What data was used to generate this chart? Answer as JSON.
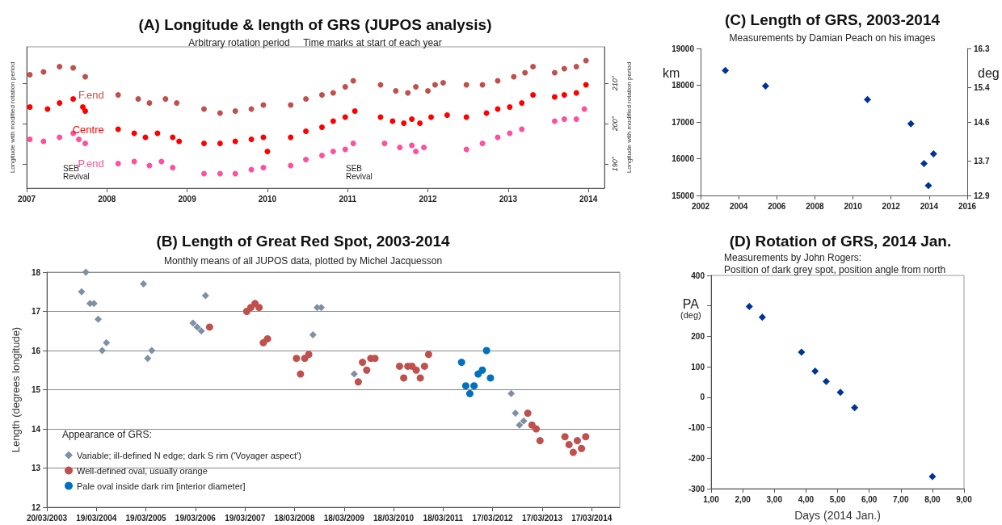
{
  "chart_data": [
    {
      "type": "scatter",
      "title": "(A) Longitude & length of GRS (JUPOS analysis)",
      "subtitle": "Arbitrary rotation period     Time marks at start of each year",
      "ylabel": "Longitude with modified rotation period",
      "y2label": "Longitude with modified rotation period",
      "marker": "circle",
      "xlim": [
        2007,
        2014.2
      ],
      "xticks": [
        2007,
        2008,
        2009,
        2010,
        2011,
        2012,
        2013,
        2014
      ],
      "ylim": [
        184,
        219
      ],
      "yticks": [
        {
          "value": 190,
          "label": "190°"
        },
        {
          "value": 200,
          "label": "200°"
        },
        {
          "value": 210,
          "label": "210°"
        }
      ],
      "annotations": [
        "SEB Revival",
        "SEB Revival"
      ],
      "series": [
        {
          "name": "F.end",
          "color": "#c0504d",
          "x": [
            2007.04,
            2007.21,
            2007.41,
            2007.58,
            2007.73,
            2008.14,
            2008.39,
            2008.53,
            2008.73,
            2008.87,
            2009.21,
            2009.41,
            2009.6,
            2009.8,
            2009.95,
            2010.29,
            2010.48,
            2010.68,
            2010.82,
            2010.97,
            2011.07,
            2011.41,
            2011.6,
            2011.75,
            2011.85,
            2012.0,
            2012.09,
            2012.19,
            2012.48,
            2012.68,
            2012.87,
            2013.07,
            2013.21,
            2013.31,
            2013.58,
            2013.7,
            2013.85,
            2013.97
          ],
          "values": [
            212.1,
            212.8,
            214.1,
            213.8,
            211.6,
            207.1,
            206.1,
            205.1,
            206.1,
            205.1,
            203.6,
            202.6,
            203.1,
            203.6,
            204.6,
            204.6,
            206.1,
            207.1,
            207.6,
            209.1,
            210.6,
            209.6,
            208.1,
            207.6,
            209.1,
            208.1,
            209.6,
            210.1,
            209.6,
            209.6,
            210.6,
            211.6,
            212.6,
            214.1,
            212.6,
            213.6,
            214.1,
            215.6
          ]
        },
        {
          "name": "Centre",
          "color": "#ff0000",
          "x": [
            2007.04,
            2007.26,
            2007.41,
            2007.58,
            2007.7,
            2007.73,
            2008.14,
            2008.34,
            2008.48,
            2008.63,
            2008.82,
            2008.9,
            2009.21,
            2009.41,
            2009.6,
            2009.8,
            2009.95,
            2010.0,
            2010.29,
            2010.48,
            2010.68,
            2010.82,
            2010.97,
            2011.09,
            2011.41,
            2011.56,
            2011.7,
            2011.8,
            2011.9,
            2012.04,
            2012.24,
            2012.48,
            2012.73,
            2012.87,
            2013.02,
            2013.17,
            2013.31,
            2013.58,
            2013.7,
            2013.85,
            2013.97
          ],
          "values": [
            204.1,
            203.6,
            205.1,
            206.1,
            204.1,
            203.1,
            198.6,
            197.6,
            196.6,
            197.6,
            196.6,
            195.6,
            195.1,
            195.1,
            195.6,
            196.1,
            196.6,
            193.1,
            196.6,
            198.1,
            199.1,
            200.6,
            201.6,
            203.1,
            201.6,
            200.6,
            200.1,
            201.1,
            200.1,
            201.6,
            202.1,
            201.6,
            202.6,
            203.6,
            204.1,
            205.1,
            207.1,
            206.6,
            207.1,
            207.6,
            209.6
          ]
        },
        {
          "name": "P.end",
          "color": "#ff4f9e",
          "x": [
            2007.04,
            2007.21,
            2007.41,
            2007.58,
            2007.65,
            2007.73,
            2008.14,
            2008.34,
            2008.53,
            2008.68,
            2008.82,
            2009.21,
            2009.41,
            2009.6,
            2009.8,
            2009.95,
            2010.29,
            2010.48,
            2010.68,
            2010.82,
            2010.97,
            2011.07,
            2011.46,
            2011.65,
            2011.8,
            2011.85,
            2011.95,
            2012.48,
            2012.68,
            2012.87,
            2013.02,
            2013.17,
            2013.58,
            2013.7,
            2013.85,
            2013.95
          ],
          "values": [
            196.1,
            195.6,
            196.6,
            197.6,
            196.1,
            195.1,
            190.1,
            190.6,
            189.6,
            190.6,
            189.1,
            187.6,
            187.6,
            187.6,
            188.6,
            189.1,
            189.6,
            191.1,
            192.1,
            193.1,
            193.6,
            195.1,
            195.1,
            194.1,
            194.6,
            193.1,
            194.1,
            193.6,
            195.1,
            196.6,
            197.6,
            198.6,
            200.6,
            201.1,
            201.1,
            203.6
          ]
        }
      ]
    },
    {
      "type": "scatter",
      "title": "(C) Length of GRS, 2003-2014",
      "subtitle": "Measurements by Damian Peach on his images",
      "ylabel": "km",
      "y2label": "deg",
      "marker": "diamond",
      "xlim": [
        2002,
        2016
      ],
      "xticks": [
        2002,
        2004,
        2006,
        2008,
        2010,
        2012,
        2014,
        2016
      ],
      "ylim": [
        15000,
        19000
      ],
      "yticks": [
        15000,
        16000,
        17000,
        18000,
        19000
      ],
      "y2lim": [
        12.9,
        16.3
      ],
      "y2ticks": [
        12.9,
        13.7,
        14.6,
        15.4,
        16.3
      ],
      "series": [
        {
          "color": "#003399",
          "x": [
            2003.3,
            2005.41,
            2010.76,
            2013.04,
            2013.73,
            2013.96,
            2014.23
          ],
          "values": [
            18400,
            17980,
            17610,
            16950,
            15870,
            15270,
            16130
          ]
        }
      ]
    },
    {
      "type": "scatter",
      "title": "(B) Length of Great Red Spot, 2003-2014",
      "subtitle": "Monthly means of all JUPOS data, plotted by Michel Jacquesson",
      "ylabel": "Length (degrees longitude)",
      "legend_title": "Appearance of GRS:",
      "legend": "bottom left",
      "grid": "y",
      "xlim": [
        "2003-03-20",
        "2014-10-10"
      ],
      "xticks": [
        {
          "value": "2003-03-20",
          "label": "20/03/2003"
        },
        {
          "value": "2004-03-19",
          "label": "19/03/2004"
        },
        {
          "value": "2005-03-19",
          "label": "19/03/2005"
        },
        {
          "value": "2006-03-19",
          "label": "19/03/2006"
        },
        {
          "value": "2007-03-19",
          "label": "19/03/2007"
        },
        {
          "value": "2008-03-18",
          "label": "18/03/2008"
        },
        {
          "value": "2009-03-18",
          "label": "18/03/2009"
        },
        {
          "value": "2010-03-18",
          "label": "18/03/2010"
        },
        {
          "value": "2011-03-18",
          "label": "18/03/2011"
        },
        {
          "value": "2012-03-17",
          "label": "17/03/2012"
        },
        {
          "value": "2013-03-17",
          "label": "17/03/2013"
        },
        {
          "value": "2014-03-17",
          "label": "17/03/2014"
        }
      ],
      "ylim": [
        12,
        18
      ],
      "yticks": [
        12,
        13,
        14,
        15,
        16,
        17,
        18
      ],
      "series": [
        {
          "name": "Variable; ill-defined N edge; dark S rim ('Voyager aspect')",
          "color": "#7f8fa6",
          "marker": "diamond",
          "x": [
            "2003-12",
            "2004-01",
            "2004-02",
            "2004-03",
            "2004-04",
            "2004-05",
            "2004-06",
            "2005-03",
            "2005-04",
            "2005-05",
            "2006-03",
            "2006-04",
            "2006-05",
            "2006-06",
            "2008-08",
            "2008-09",
            "2008-10",
            "2009-06",
            "2012-08",
            "2012-09",
            "2012-10",
            "2012-11"
          ],
          "values": [
            17.5,
            18.0,
            17.2,
            17.2,
            16.8,
            16.0,
            16.2,
            17.7,
            15.8,
            16.0,
            16.7,
            16.6,
            16.5,
            17.4,
            16.4,
            17.1,
            17.1,
            15.4,
            14.9,
            14.4,
            14.1,
            14.2
          ]
        },
        {
          "name": "Well-defined oval, usually orange",
          "color": "#c0504d",
          "marker": "circle",
          "x": [
            "2006-07",
            "2007-04",
            "2007-05",
            "2007-06",
            "2007-07",
            "2007-08",
            "2007-09",
            "2008-04",
            "2008-05",
            "2008-06",
            "2008-07",
            "2009-07",
            "2009-08",
            "2009-09",
            "2009-10",
            "2009-11",
            "2010-05",
            "2010-06",
            "2010-07",
            "2010-08",
            "2010-09",
            "2010-10",
            "2010-11",
            "2010-12",
            "2012-12",
            "2013-01",
            "2013-02",
            "2013-03",
            "2013-09",
            "2013-10",
            "2013-11",
            "2013-12",
            "2014-01",
            "2014-02"
          ],
          "values": [
            16.6,
            17.0,
            17.1,
            17.2,
            17.1,
            16.2,
            16.3,
            15.8,
            15.4,
            15.8,
            15.9,
            15.2,
            15.7,
            15.5,
            15.8,
            15.8,
            15.6,
            15.3,
            15.6,
            15.6,
            15.5,
            15.3,
            15.6,
            15.9,
            14.4,
            14.1,
            14.0,
            13.7,
            13.8,
            13.6,
            13.4,
            13.7,
            13.5,
            13.8
          ]
        },
        {
          "name": "Pale oval inside dark rim [interior diameter]",
          "color": "#0070c0",
          "marker": "circle",
          "x": [
            "2011-08",
            "2011-09",
            "2011-10",
            "2011-11",
            "2011-12",
            "2012-01",
            "2012-02",
            "2012-03"
          ],
          "values": [
            15.7,
            15.1,
            14.9,
            15.1,
            15.4,
            15.5,
            16.0,
            15.3
          ]
        }
      ]
    },
    {
      "type": "scatter",
      "title": "(D) Rotation of GRS, 2014 Jan.",
      "subtitle": "Measurements by John Rogers:\nPosition of dark grey spot, position angle from north",
      "xlabel": "Days (2014 Jan.)",
      "ylabel": "PA (deg)",
      "marker": "diamond",
      "xlim": [
        1,
        9
      ],
      "xticks": [
        {
          "value": 1,
          "label": "1,00"
        },
        {
          "value": 2,
          "label": "2,00"
        },
        {
          "value": 3,
          "label": "3,00"
        },
        {
          "value": 4,
          "label": "4,00"
        },
        {
          "value": 5,
          "label": "5,00"
        },
        {
          "value": 6,
          "label": "6,00"
        },
        {
          "value": 7,
          "label": "7,00"
        },
        {
          "value": 8,
          "label": "8,00"
        },
        {
          "value": 9,
          "label": "9,00"
        }
      ],
      "ylim": [
        -300,
        400
      ],
      "yticks": [
        -300,
        -200,
        -100,
        0,
        100,
        200,
        {
          "value": 300,
          "label": null
        },
        400
      ],
      "series": [
        {
          "color": "#003399",
          "x": [
            2.21,
            2.62,
            3.86,
            4.29,
            4.64,
            5.09,
            5.54,
            8.0
          ],
          "values": [
            298,
            263,
            148,
            86,
            52,
            16,
            -34,
            -260
          ]
        }
      ]
    }
  ]
}
